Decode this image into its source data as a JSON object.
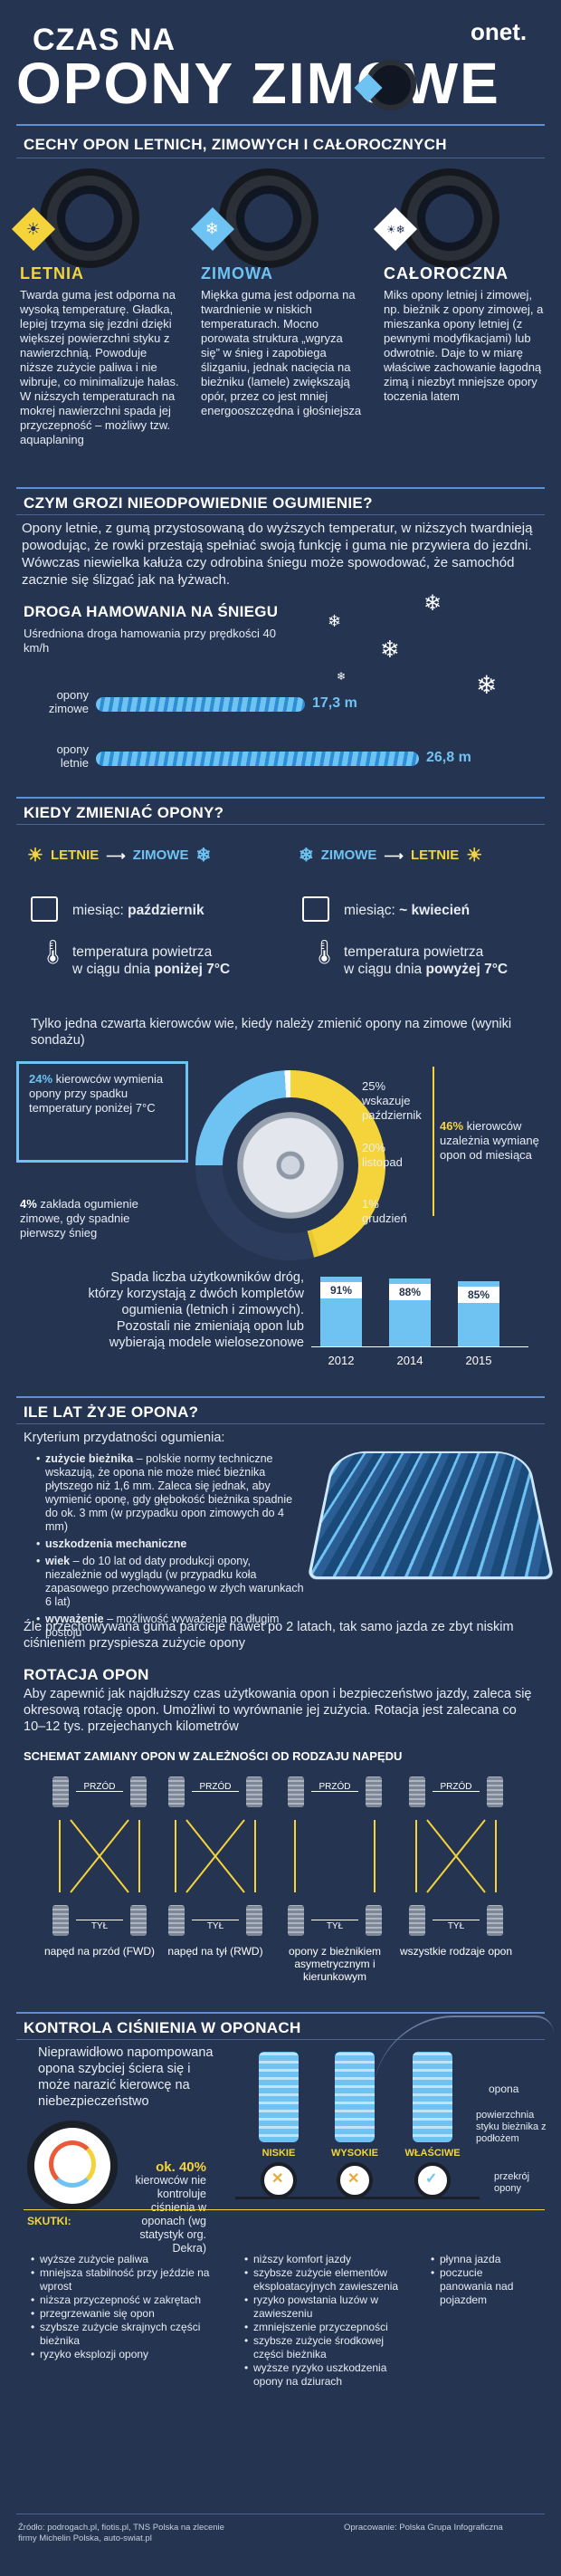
{
  "header": {
    "line1": "CZAS NA",
    "line2": "OPONY ZIMOWE",
    "logo": "onet."
  },
  "features": {
    "title": "CECHY OPON LETNICH, ZIMOWYCH I CAŁOROCZNYCH",
    "columns": [
      {
        "name": "LETNIA",
        "text": "Twarda guma jest odporna na wysoką temperaturę. Gładka, lepiej trzyma się jezdni dzięki większej powierzchni styku z nawierzchnią. Powoduje niższe zużycie paliwa i nie wibruje, co minimalizuje hałas. W niższych temperaturach na mokrej nawierzchni spada jej przyczepność – możliwy tzw. aquaplaning"
      },
      {
        "name": "ZIMOWA",
        "text": "Miękka guma jest odporna na twardnienie w niskich temperaturach. Mocno porowata struktura „wgryza się” w śnieg i zapobiega ślizganiu, jednak nacięcia na bieżniku (lamele) zwiększają opór, przez co jest mniej energooszczędna i głośniejsza"
      },
      {
        "name": "CAŁOROCZNA",
        "text": "Miks opony letniej i zimowej, np. bieżnik z opony zimowej, a mieszanka opony letniej (z pewnymi modyfikacjami) lub odwrotnie. Daje to w miarę właściwe zachowanie łagodną zimą i niezbyt mniejsze opory toczenia latem"
      }
    ]
  },
  "danger": {
    "title": "CZYM GROZI NIEODPOWIEDNIE OGUMIENIE?",
    "text": "Opony letnie, z gumą przystosowaną do wyższych temperatur, w niższych twardnieją powodując, że rowki przestają spełniać swoją funkcję i guma nie przywiera do jezdni. Wówczas niewielka kałuża czy odrobina śniegu może spowodować, że samochód zacznie się ślizgać jak na łyżwach."
  },
  "braking": {
    "title": "DROGA HAMOWANIA NA ŚNIEGU",
    "subtitle": "Uśredniona droga hamowania przy prędkości 40 km/h",
    "rows": [
      {
        "label1": "opony",
        "label2": "zimowe",
        "value": "17,3 m",
        "meters": 17.3
      },
      {
        "label1": "opony",
        "label2": "letnie",
        "value": "26,8 m",
        "meters": 26.8
      }
    ]
  },
  "when": {
    "title": "KIEDY ZMIENIAĆ OPONY?",
    "left": {
      "from": "LETNIE",
      "to": "ZIMOWE",
      "month_label": "miesiąc:",
      "month": "październik",
      "temp1": "temperatura powietrza",
      "temp2": "w ciągu dnia",
      "temp_bold": "poniżej 7°C"
    },
    "right": {
      "from": "ZIMOWE",
      "to": "LETNIE",
      "month_label": "miesiąc:",
      "month": "~ kwiecień",
      "temp1": "temperatura powietrza",
      "temp2": "w ciągu dnia",
      "temp_bold": "powyżej 7°C"
    }
  },
  "survey": {
    "intro": "Tylko jedna czwarta kierowców wie, kiedy należy zmienić opony na zimowe (wyniki sondażu)",
    "a_pct": "24%",
    "a_text": "kierowców wymienia opony przy spadku temperatury poniżej 7°C",
    "b_pct": "4%",
    "b_text": "zakłada ogumienie zimowe, gdy spadnie pierwszy śnieg",
    "c_pct": "46%",
    "c_text": "kierowców uzależnia wymianę opon od miesiąca",
    "d1": "25%",
    "d1_text": "wskazuje październik",
    "d2": "20%",
    "d2_text": "listopad",
    "d3": "1%",
    "d3_text": "grudzień"
  },
  "users": {
    "text": "Spada liczba użytkowników dróg, którzy korzystają z dwóch kompletów ogumienia (letnich i zimowych). Pozostali nie zmieniają opon lub wybierają modele wielosezonowe"
  },
  "chart_data": {
    "type": "bar",
    "categories": [
      "2012",
      "2014",
      "2015"
    ],
    "values": [
      91,
      88,
      85
    ],
    "labels": [
      "91%",
      "88%",
      "85%"
    ],
    "ylim": [
      0,
      100
    ]
  },
  "age": {
    "title": "ILE LAT ŻYJE OPONA?",
    "criteria": "Kryterium przydatności ogumienia:",
    "items": [
      {
        "bold": "zużycie bieżnika",
        "text": " – polskie normy techniczne wskazują, że opona nie może mieć bieżnika płytszego niż 1,6 mm. Zaleca się jednak, aby wymienić oponę, gdy głębokość bieżnika spadnie do ok. 3 mm (w przypadku opon zimowych do 4 mm)"
      },
      {
        "bold": "uszkodzenia mechaniczne",
        "text": ""
      },
      {
        "bold": "wiek",
        "text": " – do 10 lat od daty produkcji opony, niezależnie od wyglądu (w przypadku koła zapasowego przechowywanego w złych warunkach 6 lat)"
      },
      {
        "bold": "wyważenie",
        "text": " – możliwość wyważenia po długim postoju"
      }
    ],
    "footer": "Źle przechowywana guma parcieje nawet po 2 latach, tak samo jazda ze zbyt niskim ciśnieniem przyspiesza zużycie opony"
  },
  "rotation": {
    "title": "ROTACJA OPON",
    "text": "Aby zapewnić jak najdłuższy czas użytkowania opon i bezpieczeństwo jazdy, zaleca się okresową rotację opon. Umożliwi to wyrównanie jej zużycia. Rotacja jest zalecana co 10–12 tys. przejechanych kilometrów",
    "scheme_title": "SCHEMAT ZAMIANY OPON W ZALEŻNOŚCI OD RODZAJU NAPĘDU",
    "front": "PRZÓD",
    "back": "TYŁ",
    "schemes": [
      {
        "label": "napęd na przód (FWD)"
      },
      {
        "label": "napęd na tył (RWD)"
      },
      {
        "label": "opony z bieżnikiem asymetrycznym i kierunkowym"
      },
      {
        "label": "wszystkie rodzaje opon"
      }
    ]
  },
  "pressure": {
    "title": "KONTROLA CIŚNIENIA W OPONACH",
    "text": "Nieprawidłowo napompowana opona szybciej ściera się i może narazić kierowcę na niebezpieczeństwo",
    "pct": "ok. 40%",
    "pct_text": "kierowców nie kontroluje ciśnienia w oponach (wg statystyk org. Dekra)",
    "states": [
      "NISKIE",
      "WYSOKIE",
      "WŁAŚCIWE"
    ],
    "legend1": "opona",
    "legend2": "powierzchnia styku bieżnika z podłożem",
    "legend3": "przekrój opony",
    "effects_label": "SKUTKI:",
    "effects": [
      [
        "wyższe zużycie paliwa",
        "mniejsza stabilność przy jeździe na wprost",
        "niższa przyczepność w zakrętach",
        "przegrzewanie się opon",
        "szybsze zużycie skrajnych części bieżnika",
        "ryzyko eksplozji opony"
      ],
      [
        "niższy komfort jazdy",
        "szybsze zużycie elementów eksploatacyjnych zawieszenia",
        "ryzyko powstania luzów w zawieszeniu",
        "zmniejszenie przyczepności",
        "szybsze zużycie środkowej części bieżnika",
        "wyższe ryzyko uszkodzenia opony na dziurach"
      ],
      [
        "płynna jazda",
        "poczucie panowania nad pojazdem"
      ]
    ]
  },
  "footer": {
    "source": "Źródło: podrogach.pl, fiotis.pl, TNS Polska na zlecenie firmy Michelin Polska, auto-swiat.pl",
    "credit": "Opracowanie: Polska Grupa Infograficzna"
  },
  "colors": {
    "bg": "#243451",
    "accent": "#5a91d8",
    "summer": "#f4d43a",
    "winter": "#6fc3f2"
  }
}
